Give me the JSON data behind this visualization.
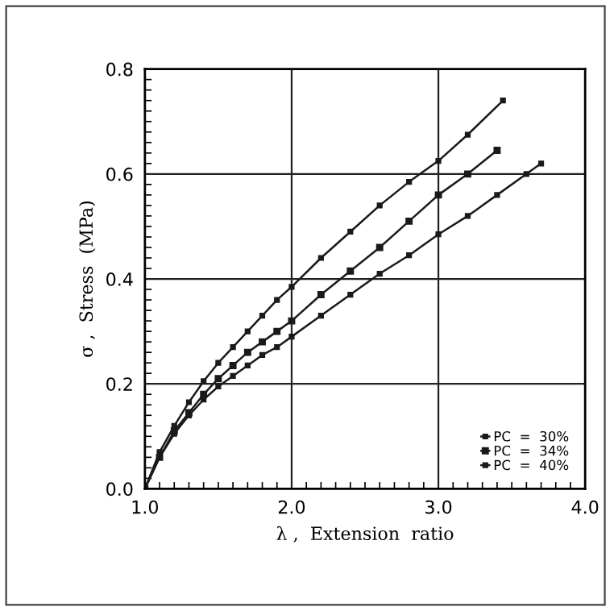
{
  "chart_data": {
    "type": "line",
    "xlabel": "λ ,  Extension  ratio",
    "ylabel": "σ ,  Stress  (MPa)",
    "xlim": [
      1.0,
      4.0
    ],
    "ylim": [
      0.0,
      0.8
    ],
    "xticks": [
      {
        "value": 1.0,
        "label": "1.0"
      },
      {
        "value": 2.0,
        "label": "2.0"
      },
      {
        "value": 3.0,
        "label": "3.0"
      },
      {
        "value": 4.0,
        "label": "4.0"
      }
    ],
    "yticks": [
      {
        "value": 0.0,
        "label": "0.0"
      },
      {
        "value": 0.2,
        "label": "0.2"
      },
      {
        "value": 0.4,
        "label": "0.4"
      },
      {
        "value": 0.6,
        "label": "0.6"
      },
      {
        "value": 0.8,
        "label": "0.8"
      }
    ],
    "grid": true,
    "legend": "bottom right",
    "marker": "square",
    "line_style": "solid",
    "series": [
      {
        "name": "PC  =  30%",
        "color": "#1a1a1a",
        "x": [
          1.0,
          1.1,
          1.2,
          1.3,
          1.4,
          1.5,
          1.6,
          1.7,
          1.8,
          1.9,
          2.0,
          2.2,
          2.4,
          2.6,
          2.8,
          3.0,
          3.2,
          3.44
        ],
        "values": [
          0,
          0.07,
          0.12,
          0.165,
          0.205,
          0.24,
          0.27,
          0.3,
          0.33,
          0.36,
          0.385,
          0.44,
          0.49,
          0.54,
          0.585,
          0.625,
          0.675,
          0.74
        ]
      },
      {
        "name": "PC  =  34%",
        "color": "#1a1a1a",
        "x": [
          1.0,
          1.1,
          1.2,
          1.3,
          1.4,
          1.5,
          1.6,
          1.7,
          1.8,
          1.9,
          2.0,
          2.2,
          2.4,
          2.6,
          2.8,
          3.0,
          3.2,
          3.4
        ],
        "values": [
          0,
          0.06,
          0.11,
          0.145,
          0.18,
          0.21,
          0.235,
          0.26,
          0.28,
          0.3,
          0.32,
          0.37,
          0.415,
          0.46,
          0.51,
          0.56,
          0.6,
          0.645
        ]
      },
      {
        "name": "PC  =  40%",
        "color": "#1a1a1a",
        "x": [
          1.0,
          1.1,
          1.2,
          1.3,
          1.4,
          1.5,
          1.6,
          1.7,
          1.8,
          1.9,
          2.0,
          2.2,
          2.4,
          2.6,
          2.8,
          3.0,
          3.2,
          3.4,
          3.6,
          3.7
        ],
        "values": [
          0,
          0.06,
          0.105,
          0.14,
          0.17,
          0.195,
          0.215,
          0.235,
          0.255,
          0.27,
          0.29,
          0.33,
          0.37,
          0.41,
          0.445,
          0.485,
          0.52,
          0.56,
          0.6,
          0.62
        ]
      }
    ]
  }
}
